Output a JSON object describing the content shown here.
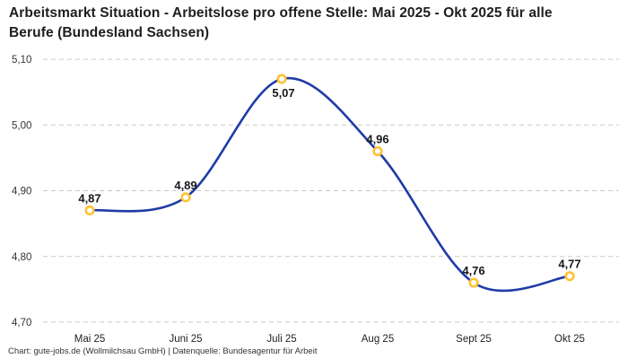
{
  "chart_data": {
    "type": "line",
    "title": "Arbeitsmarkt Situation - Arbeitslose pro offene Stelle: Mai 2025 - Okt 2025 für alle Berufe (Bundesland Sachsen)",
    "footer": "Chart: gute-jobs.de (Wollmilchsau GmbH) | Datenquelle: Bundesagentur für Arbeit",
    "categories": [
      "Mai 25",
      "Juni 25",
      "Juli 25",
      "Aug 25",
      "Sept 25",
      "Okt 25"
    ],
    "values": [
      4.87,
      4.89,
      5.07,
      4.96,
      4.76,
      4.77
    ],
    "value_labels": [
      "4,87",
      "4,89",
      "5,07",
      "4,96",
      "4,76",
      "4,77"
    ],
    "label_positions": [
      "above",
      "above",
      "below",
      "above",
      "above",
      "above"
    ],
    "y_ticks": [
      {
        "value": 5.1,
        "label": "5,10"
      },
      {
        "value": 5.0,
        "label": "5,00"
      },
      {
        "value": 4.9,
        "label": "4,90"
      },
      {
        "value": 4.8,
        "label": "4,80"
      },
      {
        "value": 4.7,
        "label": "4,70"
      }
    ],
    "ylim": [
      4.7,
      5.1
    ],
    "grid": "horizontal-dashed",
    "smooth": true,
    "legend": "none",
    "colors": {
      "line": "#1f3ca6",
      "marker_ring": "#fdc233",
      "marker_fill": "#ffffff",
      "gridline": "#c9c9c9",
      "title_text": "#1e1e1e",
      "axis_text": "#333333",
      "data_label_text": "#17181c",
      "footer_text": "#333333"
    }
  }
}
